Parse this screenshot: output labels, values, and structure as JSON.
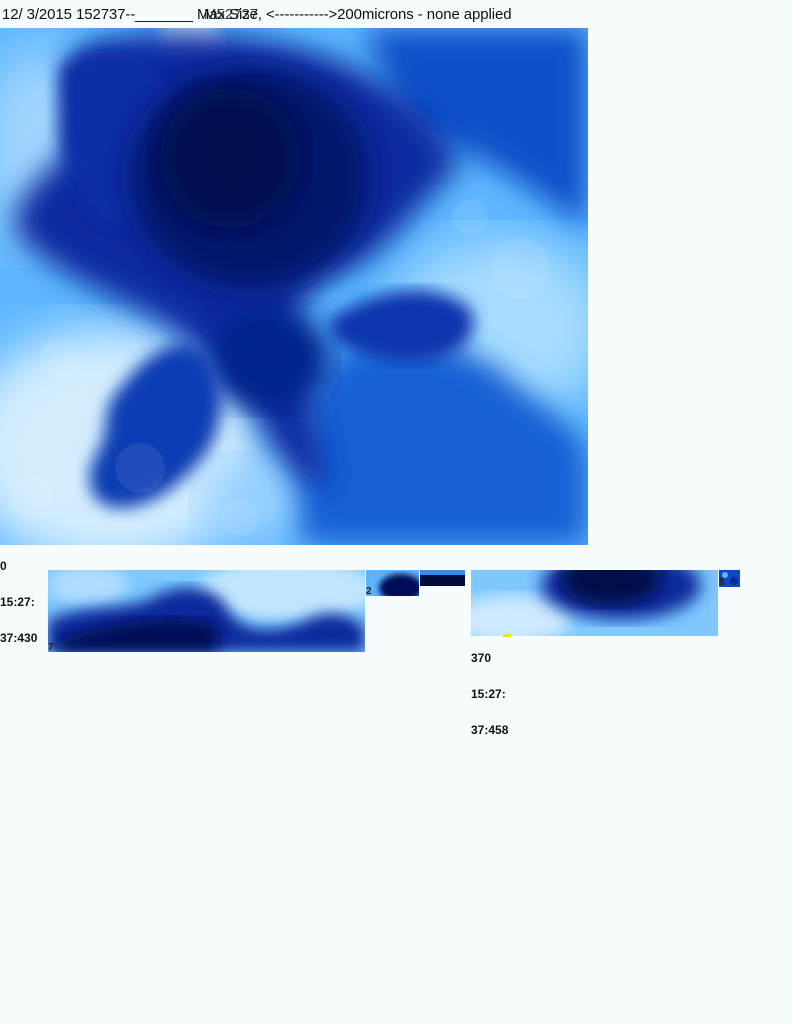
{
  "header": {
    "title": "12/ 3/2015 152737--_______ Max Size, <----------->200microns - none applied",
    "overlay_text": "M52737"
  },
  "main_panel": {
    "label_lines": [
      "0",
      "15:27:",
      "37:430"
    ]
  },
  "strip_a": {
    "corner_label": "7"
  },
  "strip_b": {
    "corner_label": "2"
  },
  "strip_c": {
    "label_lines": [
      "370",
      "15:27:",
      "37:458"
    ]
  },
  "strip_d": {
    "corner_label": "8"
  },
  "colors": {
    "background": "#f7fcff",
    "deep_blue": "#00115a",
    "dark_blue": "#0a2a9c",
    "mid_blue": "#1464d8",
    "light_blue": "#5ab4ff",
    "pale_blue": "#c6e8ff",
    "mark_yellow": "#e8e800"
  }
}
